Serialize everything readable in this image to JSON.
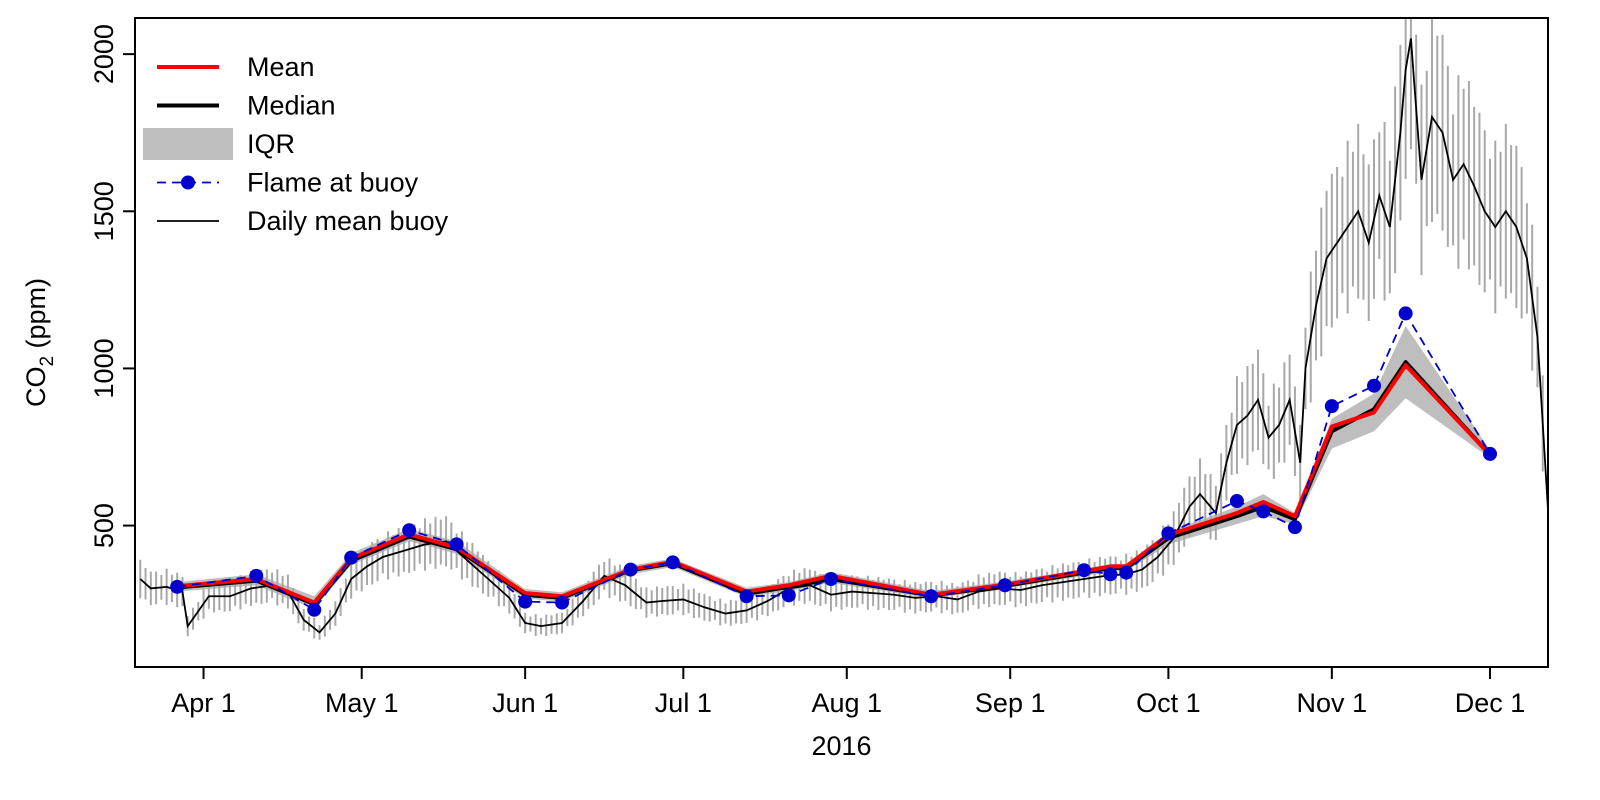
{
  "chart_data": {
    "type": "line",
    "xlabel": "2016",
    "ylabel_main": "CO",
    "ylabel_sub": "2",
    "ylabel_tail": " (ppm)",
    "xlim": [
      "2016-03-19",
      "2016-12-12"
    ],
    "ylim": [
      50,
      2115
    ],
    "y_ticks": [
      500,
      1000,
      1500,
      2000
    ],
    "x_ticks": [
      {
        "date": "2016-04-01",
        "label": "Apr 1"
      },
      {
        "date": "2016-05-01",
        "label": "May 1"
      },
      {
        "date": "2016-06-01",
        "label": "Jun 1"
      },
      {
        "date": "2016-07-01",
        "label": "Jul 1"
      },
      {
        "date": "2016-08-01",
        "label": "Aug 1"
      },
      {
        "date": "2016-09-01",
        "label": "Sep 1"
      },
      {
        "date": "2016-10-01",
        "label": "Oct 1"
      },
      {
        "date": "2016-11-01",
        "label": "Nov 1"
      },
      {
        "date": "2016-12-01",
        "label": "Dec 1"
      }
    ],
    "legend": {
      "position": "top-left",
      "items": [
        {
          "label": "Mean",
          "kind": "line",
          "color": "#ff0000"
        },
        {
          "label": "Median",
          "kind": "line",
          "color": "#000000"
        },
        {
          "label": "IQR",
          "kind": "band",
          "color": "#bebebe"
        },
        {
          "label": "Flame at buoy",
          "kind": "dash-point",
          "color": "#0000cd"
        },
        {
          "label": "Daily mean buoy",
          "kind": "thin-line",
          "color": "#000000"
        }
      ]
    },
    "survey_dates": [
      "2016-03-27",
      "2016-04-11",
      "2016-04-22",
      "2016-04-29",
      "2016-05-10",
      "2016-05-19",
      "2016-06-01",
      "2016-06-08",
      "2016-06-21",
      "2016-06-29",
      "2016-07-13",
      "2016-07-21",
      "2016-07-29",
      "2016-08-17",
      "2016-08-31",
      "2016-09-15",
      "2016-09-20",
      "2016-09-23",
      "2016-10-01",
      "2016-10-14",
      "2016-10-19",
      "2016-10-25",
      "2016-11-01",
      "2016-11-09",
      "2016-11-15",
      "2016-12-01"
    ],
    "series": [
      {
        "name": "Mean",
        "color": "#ff0000",
        "values": [
          307,
          330,
          255,
          395,
          472,
          430,
          285,
          275,
          360,
          385,
          290,
          310,
          340,
          280,
          312,
          355,
          370,
          370,
          470,
          540,
          575,
          530,
          815,
          860,
          1010,
          725
        ]
      },
      {
        "name": "Median",
        "color": "#000000",
        "values": [
          303,
          325,
          250,
          388,
          465,
          425,
          280,
          270,
          358,
          380,
          283,
          305,
          330,
          278,
          308,
          350,
          365,
          365,
          460,
          530,
          560,
          520,
          800,
          870,
          1020,
          725
        ]
      },
      {
        "name": "IQR",
        "color": "#bebebe",
        "lower": [
          290,
          310,
          235,
          375,
          450,
          410,
          268,
          258,
          345,
          368,
          272,
          292,
          318,
          268,
          300,
          340,
          355,
          355,
          440,
          505,
          530,
          505,
          745,
          800,
          905,
          715
        ],
        "upper": [
          320,
          345,
          275,
          412,
          490,
          450,
          298,
          288,
          372,
          395,
          302,
          320,
          352,
          292,
          322,
          362,
          378,
          378,
          480,
          560,
          600,
          540,
          840,
          920,
          1135,
          740
        ]
      },
      {
        "name": "Flame at buoy",
        "color": "#0000cd",
        "values": [
          305,
          340,
          232,
          398,
          485,
          440,
          258,
          255,
          360,
          383,
          275,
          278,
          330,
          275,
          310,
          358,
          345,
          350,
          475,
          578,
          545,
          495,
          880,
          945,
          1175,
          728
        ]
      },
      {
        "name": "Daily mean buoy",
        "color": "#000000",
        "x": [
          "2016-03-20",
          "2016-03-22",
          "2016-03-25",
          "2016-03-28",
          "2016-03-29",
          "2016-04-02",
          "2016-04-06",
          "2016-04-10",
          "2016-04-14",
          "2016-04-17",
          "2016-04-20",
          "2016-04-23",
          "2016-04-26",
          "2016-04-29",
          "2016-05-02",
          "2016-05-05",
          "2016-05-09",
          "2016-05-13",
          "2016-05-17",
          "2016-05-21",
          "2016-05-25",
          "2016-05-29",
          "2016-06-01",
          "2016-06-04",
          "2016-06-08",
          "2016-06-12",
          "2016-06-16",
          "2016-06-20",
          "2016-06-24",
          "2016-06-27",
          "2016-07-01",
          "2016-07-05",
          "2016-07-09",
          "2016-07-13",
          "2016-07-17",
          "2016-07-21",
          "2016-07-25",
          "2016-07-29",
          "2016-08-02",
          "2016-08-06",
          "2016-08-10",
          "2016-08-14",
          "2016-08-18",
          "2016-08-22",
          "2016-08-26",
          "2016-08-30",
          "2016-09-03",
          "2016-09-07",
          "2016-09-11",
          "2016-09-15",
          "2016-09-19",
          "2016-09-23",
          "2016-09-26",
          "2016-09-29",
          "2016-10-02",
          "2016-10-05",
          "2016-10-07",
          "2016-10-10",
          "2016-10-12",
          "2016-10-14",
          "2016-10-16",
          "2016-10-18",
          "2016-10-20",
          "2016-10-22",
          "2016-10-24",
          "2016-10-26",
          "2016-10-27",
          "2016-10-29",
          "2016-10-31",
          "2016-11-02",
          "2016-11-04",
          "2016-11-06",
          "2016-11-08",
          "2016-11-10",
          "2016-11-12",
          "2016-11-14",
          "2016-11-15",
          "2016-11-16",
          "2016-11-18",
          "2016-11-20",
          "2016-11-22",
          "2016-11-24",
          "2016-11-26",
          "2016-11-28",
          "2016-11-30",
          "2016-12-02",
          "2016-12-04",
          "2016-12-06",
          "2016-12-08",
          "2016-12-10",
          "2016-12-12"
        ],
        "y": [
          330,
          300,
          305,
          290,
          180,
          275,
          275,
          300,
          310,
          290,
          200,
          160,
          220,
          330,
          370,
          400,
          420,
          440,
          450,
          390,
          330,
          270,
          190,
          180,
          190,
          260,
          340,
          310,
          255,
          260,
          265,
          240,
          220,
          230,
          260,
          300,
          310,
          280,
          290,
          285,
          280,
          270,
          275,
          265,
          290,
          300,
          295,
          310,
          320,
          330,
          340,
          345,
          360,
          400,
          460,
          560,
          600,
          540,
          700,
          820,
          850,
          900,
          780,
          820,
          900,
          700,
          1000,
          1200,
          1350,
          1400,
          1450,
          1500,
          1400,
          1550,
          1450,
          1750,
          1950,
          2050,
          1600,
          1800,
          1750,
          1600,
          1650,
          1580,
          1500,
          1450,
          1500,
          1450,
          1350,
          1100,
          550
        ]
      }
    ]
  }
}
